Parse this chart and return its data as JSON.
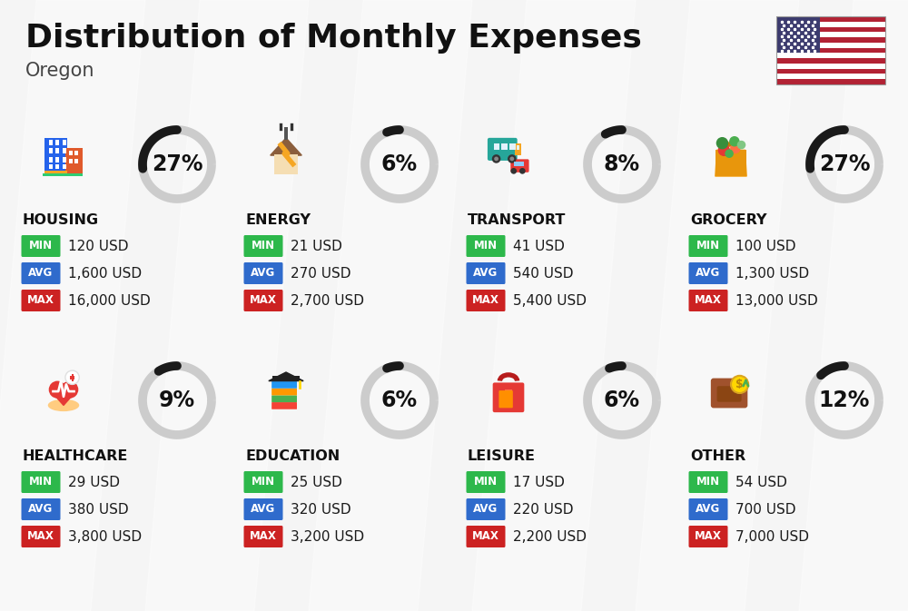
{
  "title": "Distribution of Monthly Expenses",
  "subtitle": "Oregon",
  "bg_color": "#f5f5f5",
  "categories": [
    {
      "name": "HOUSING",
      "pct": 27,
      "min": "120 USD",
      "avg": "1,600 USD",
      "max": "16,000 USD",
      "icon": "housing"
    },
    {
      "name": "ENERGY",
      "pct": 6,
      "min": "21 USD",
      "avg": "270 USD",
      "max": "2,700 USD",
      "icon": "energy"
    },
    {
      "name": "TRANSPORT",
      "pct": 8,
      "min": "41 USD",
      "avg": "540 USD",
      "max": "5,400 USD",
      "icon": "transport"
    },
    {
      "name": "GROCERY",
      "pct": 27,
      "min": "100 USD",
      "avg": "1,300 USD",
      "max": "13,000 USD",
      "icon": "grocery"
    },
    {
      "name": "HEALTHCARE",
      "pct": 9,
      "min": "29 USD",
      "avg": "380 USD",
      "max": "3,800 USD",
      "icon": "healthcare"
    },
    {
      "name": "EDUCATION",
      "pct": 6,
      "min": "25 USD",
      "avg": "320 USD",
      "max": "3,200 USD",
      "icon": "education"
    },
    {
      "name": "LEISURE",
      "pct": 6,
      "min": "17 USD",
      "avg": "220 USD",
      "max": "2,200 USD",
      "icon": "leisure"
    },
    {
      "name": "OTHER",
      "pct": 12,
      "min": "54 USD",
      "avg": "700 USD",
      "max": "7,000 USD",
      "icon": "other"
    }
  ],
  "min_color": "#2db84b",
  "avg_color": "#2f6bcc",
  "max_color": "#cc2222",
  "ring_color_filled": "#1a1a1a",
  "ring_color_empty": "#cccccc",
  "title_fontsize": 26,
  "subtitle_fontsize": 15,
  "cat_fontsize": 11.5,
  "val_fontsize": 11,
  "pct_fontsize": 17
}
